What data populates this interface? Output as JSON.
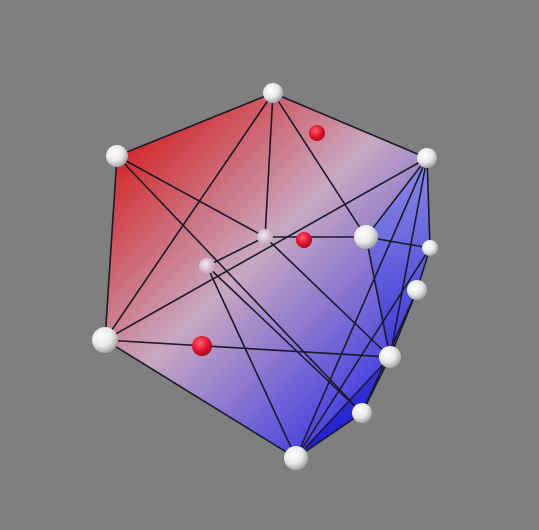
{
  "scene": {
    "background": "#7f7f7f",
    "gradient_colors": [
      "#d42020",
      "#c8a8c0",
      "#2a2ae8"
    ],
    "edge_color": "#1a1a2a",
    "vertex_color": "#ffffff",
    "marker_color": "#e0102a"
  }
}
